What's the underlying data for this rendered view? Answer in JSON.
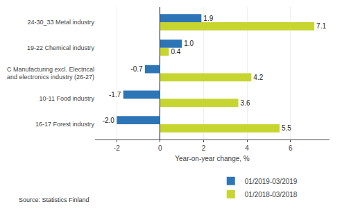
{
  "chart_data": {
    "type": "bar",
    "orientation": "horizontal",
    "categories": [
      "16-17 Forest industry",
      "10-11 Food industry",
      "C Manufacturing excl. Electrical\nand electronics industry (26-27)",
      "19-22 Chemical industry",
      "24-30_33 Metal industry"
    ],
    "series": [
      {
        "name": "01/2019-03/2019",
        "color": "#2E75B6",
        "values": [
          -2.0,
          -1.7,
          -0.7,
          1.0,
          1.9
        ],
        "value_labels": [
          "-2.0",
          "-1.7",
          "-0.7",
          "1.0",
          "1.9"
        ]
      },
      {
        "name": "01/2018-03/2018",
        "color": "#C7D530",
        "values": [
          5.5,
          3.6,
          4.2,
          0.4,
          7.1
        ],
        "value_labels": [
          "5.5",
          "3.6",
          "4.2",
          "0.4",
          "7.1"
        ]
      }
    ],
    "xlabel": "Year-on-year change, %",
    "xlim": [
      -3.0,
      7.8
    ],
    "xticks": [
      -2,
      0,
      2,
      4,
      6
    ],
    "grid": true,
    "legend": "bottom right",
    "data_labels": true,
    "annotations": [
      "Source: Statistics Finland"
    ]
  }
}
